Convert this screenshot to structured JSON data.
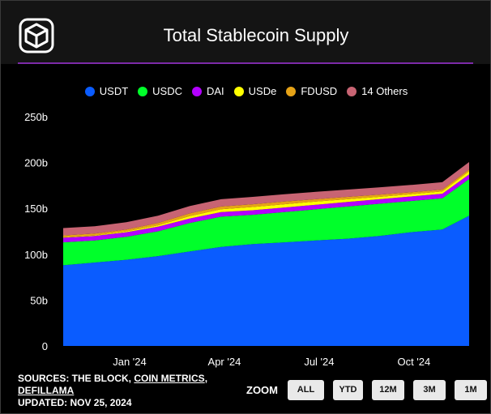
{
  "header": {
    "title": "Total Stablecoin Supply"
  },
  "legend": [
    {
      "label": "USDT",
      "color": "#0a5cff"
    },
    {
      "label": "USDC",
      "color": "#00ff2a"
    },
    {
      "label": "DAI",
      "color": "#b300ff"
    },
    {
      "label": "USDe",
      "color": "#ffff00"
    },
    {
      "label": "FDUSD",
      "color": "#e6a317"
    },
    {
      "label": "14 Others",
      "color": "#c86473"
    }
  ],
  "chart_data": {
    "type": "area",
    "stacked": true,
    "title": "Total Stablecoin Supply",
    "xlabel": "",
    "ylabel": "",
    "ylim": [
      0,
      250
    ],
    "y_unit": "b",
    "y_ticks": [
      "0",
      "50b",
      "100b",
      "150b",
      "200b",
      "250b"
    ],
    "x_ticks": [
      "Jan '24",
      "Apr '24",
      "Jul '24",
      "Oct '24"
    ],
    "x": [
      "Nov '23",
      "Dec '23",
      "Jan '24",
      "Feb '24",
      "Mar '24",
      "Apr '24",
      "May '24",
      "Jun '24",
      "Jul '24",
      "Aug '24",
      "Sep '24",
      "Oct '24",
      "Nov '24",
      "Nov 25 '24"
    ],
    "series": [
      {
        "name": "USDT",
        "color": "#0a5cff",
        "values": [
          88,
          91,
          94,
          98,
          103,
          108,
          111,
          113,
          115,
          117,
          120,
          124,
          127,
          142
        ]
      },
      {
        "name": "USDC",
        "color": "#00ff2a",
        "values": [
          25,
          24,
          25,
          27,
          31,
          33,
          32,
          33,
          34,
          35,
          35,
          34,
          34,
          40
        ]
      },
      {
        "name": "DAI",
        "color": "#b300ff",
        "values": [
          5,
          5,
          5,
          5,
          5,
          5,
          5,
          5,
          5,
          5,
          5,
          5,
          5,
          5
        ]
      },
      {
        "name": "USDe",
        "color": "#ffff00",
        "values": [
          0.5,
          0.5,
          1,
          1.5,
          2.5,
          3,
          3.5,
          3.5,
          3.5,
          3,
          2.5,
          2.5,
          2.5,
          3.5
        ]
      },
      {
        "name": "FDUSD",
        "color": "#e6a317",
        "values": [
          2,
          2,
          2,
          2.5,
          3,
          3,
          3,
          3,
          2.5,
          2.5,
          2.5,
          2,
          2,
          2
        ]
      },
      {
        "name": "14 Others",
        "color": "#c86473",
        "values": [
          8,
          8,
          8,
          8,
          8,
          8,
          8,
          8,
          8,
          8,
          8,
          8,
          8,
          8
        ]
      }
    ]
  },
  "footer": {
    "sources_prefix": "SOURCES: THE BLOCK, ",
    "source_coin_metrics": "COIN METRICS",
    "sources_sep": ",",
    "source_defillama": "DEFILLAMA",
    "updated": "UPDATED: NOV 25, 2024"
  },
  "zoom": {
    "label": "ZOOM",
    "buttons": [
      "ALL",
      "YTD",
      "12M",
      "3M",
      "1M"
    ]
  },
  "colors": {
    "background": "#000000",
    "header_bg": "#141414",
    "accent_rule": "#7c2aa8",
    "axis_text": "#ffffff"
  }
}
